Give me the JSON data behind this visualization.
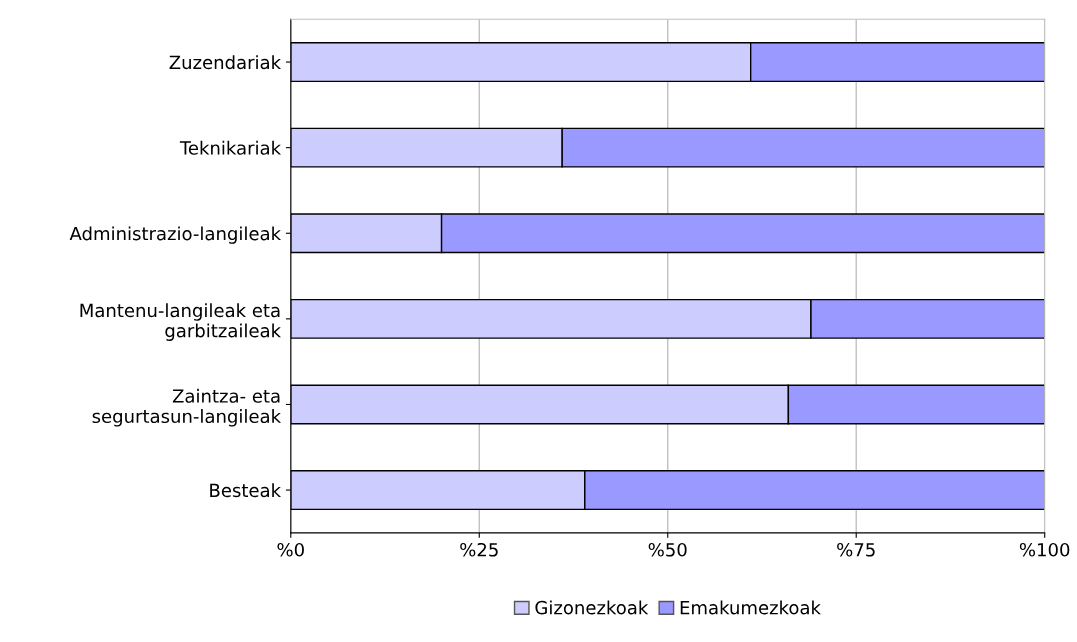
{
  "chart_data": {
    "type": "bar",
    "orientation": "horizontal",
    "stacked": true,
    "categories": [
      "Zuzendariak",
      "Teknikariak",
      "Administrazio-langileak",
      "Mantenu-langileak eta\ngarbitzaileak",
      "Zaintza- eta\nsegurtasun-langileak",
      "Besteak"
    ],
    "series": [
      {
        "name": "Gizonezkoak",
        "color": "#ccccff",
        "values": [
          61,
          36,
          20,
          69,
          66,
          39
        ]
      },
      {
        "name": "Emakumezkoak",
        "color": "#9999ff",
        "values": [
          39,
          64,
          80,
          31,
          34,
          61
        ]
      }
    ],
    "xlim": [
      0,
      100
    ],
    "xticks": [
      {
        "value": 0,
        "label": "%0"
      },
      {
        "value": 25,
        "label": "%25"
      },
      {
        "value": 50,
        "label": "%50"
      },
      {
        "value": 75,
        "label": "%75"
      },
      {
        "value": 100,
        "label": "%100"
      }
    ],
    "grid": "x",
    "legend": "bottom"
  }
}
